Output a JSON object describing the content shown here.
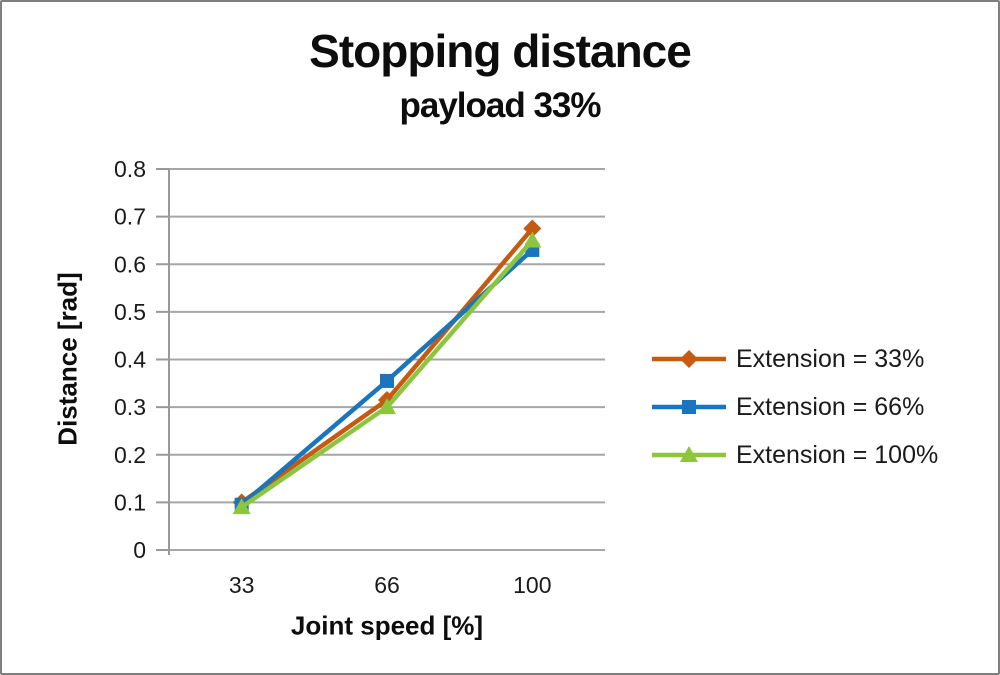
{
  "chart_data": {
    "type": "line",
    "title": "Stopping distance",
    "subtitle": "payload 33%",
    "xlabel": "Joint speed [%]",
    "ylabel": "Distance [rad]",
    "categories": [
      "33",
      "66",
      "100"
    ],
    "y_tick_labels": [
      "0",
      "0.1",
      "0.2",
      "0.3",
      "0.4",
      "0.5",
      "0.6",
      "0.7",
      "0.8"
    ],
    "ylim": [
      0,
      0.8
    ],
    "grid": "horizontal",
    "legend_position": "right-middle",
    "series": [
      {
        "name": "Extension = 33%",
        "marker": "diamond",
        "color": "#C55A11",
        "values": [
          0.1,
          0.315,
          0.675
        ]
      },
      {
        "name": "Extension = 66%",
        "marker": "square",
        "color": "#1B75BC",
        "values": [
          0.095,
          0.355,
          0.63
        ]
      },
      {
        "name": "Extension = 100%",
        "marker": "triangle",
        "color": "#8CC63F",
        "values": [
          0.09,
          0.3,
          0.65
        ]
      }
    ],
    "style_colors": {
      "gridline": "#A6A6A6",
      "axis": "#999999",
      "text": "#1a1a1a"
    }
  }
}
